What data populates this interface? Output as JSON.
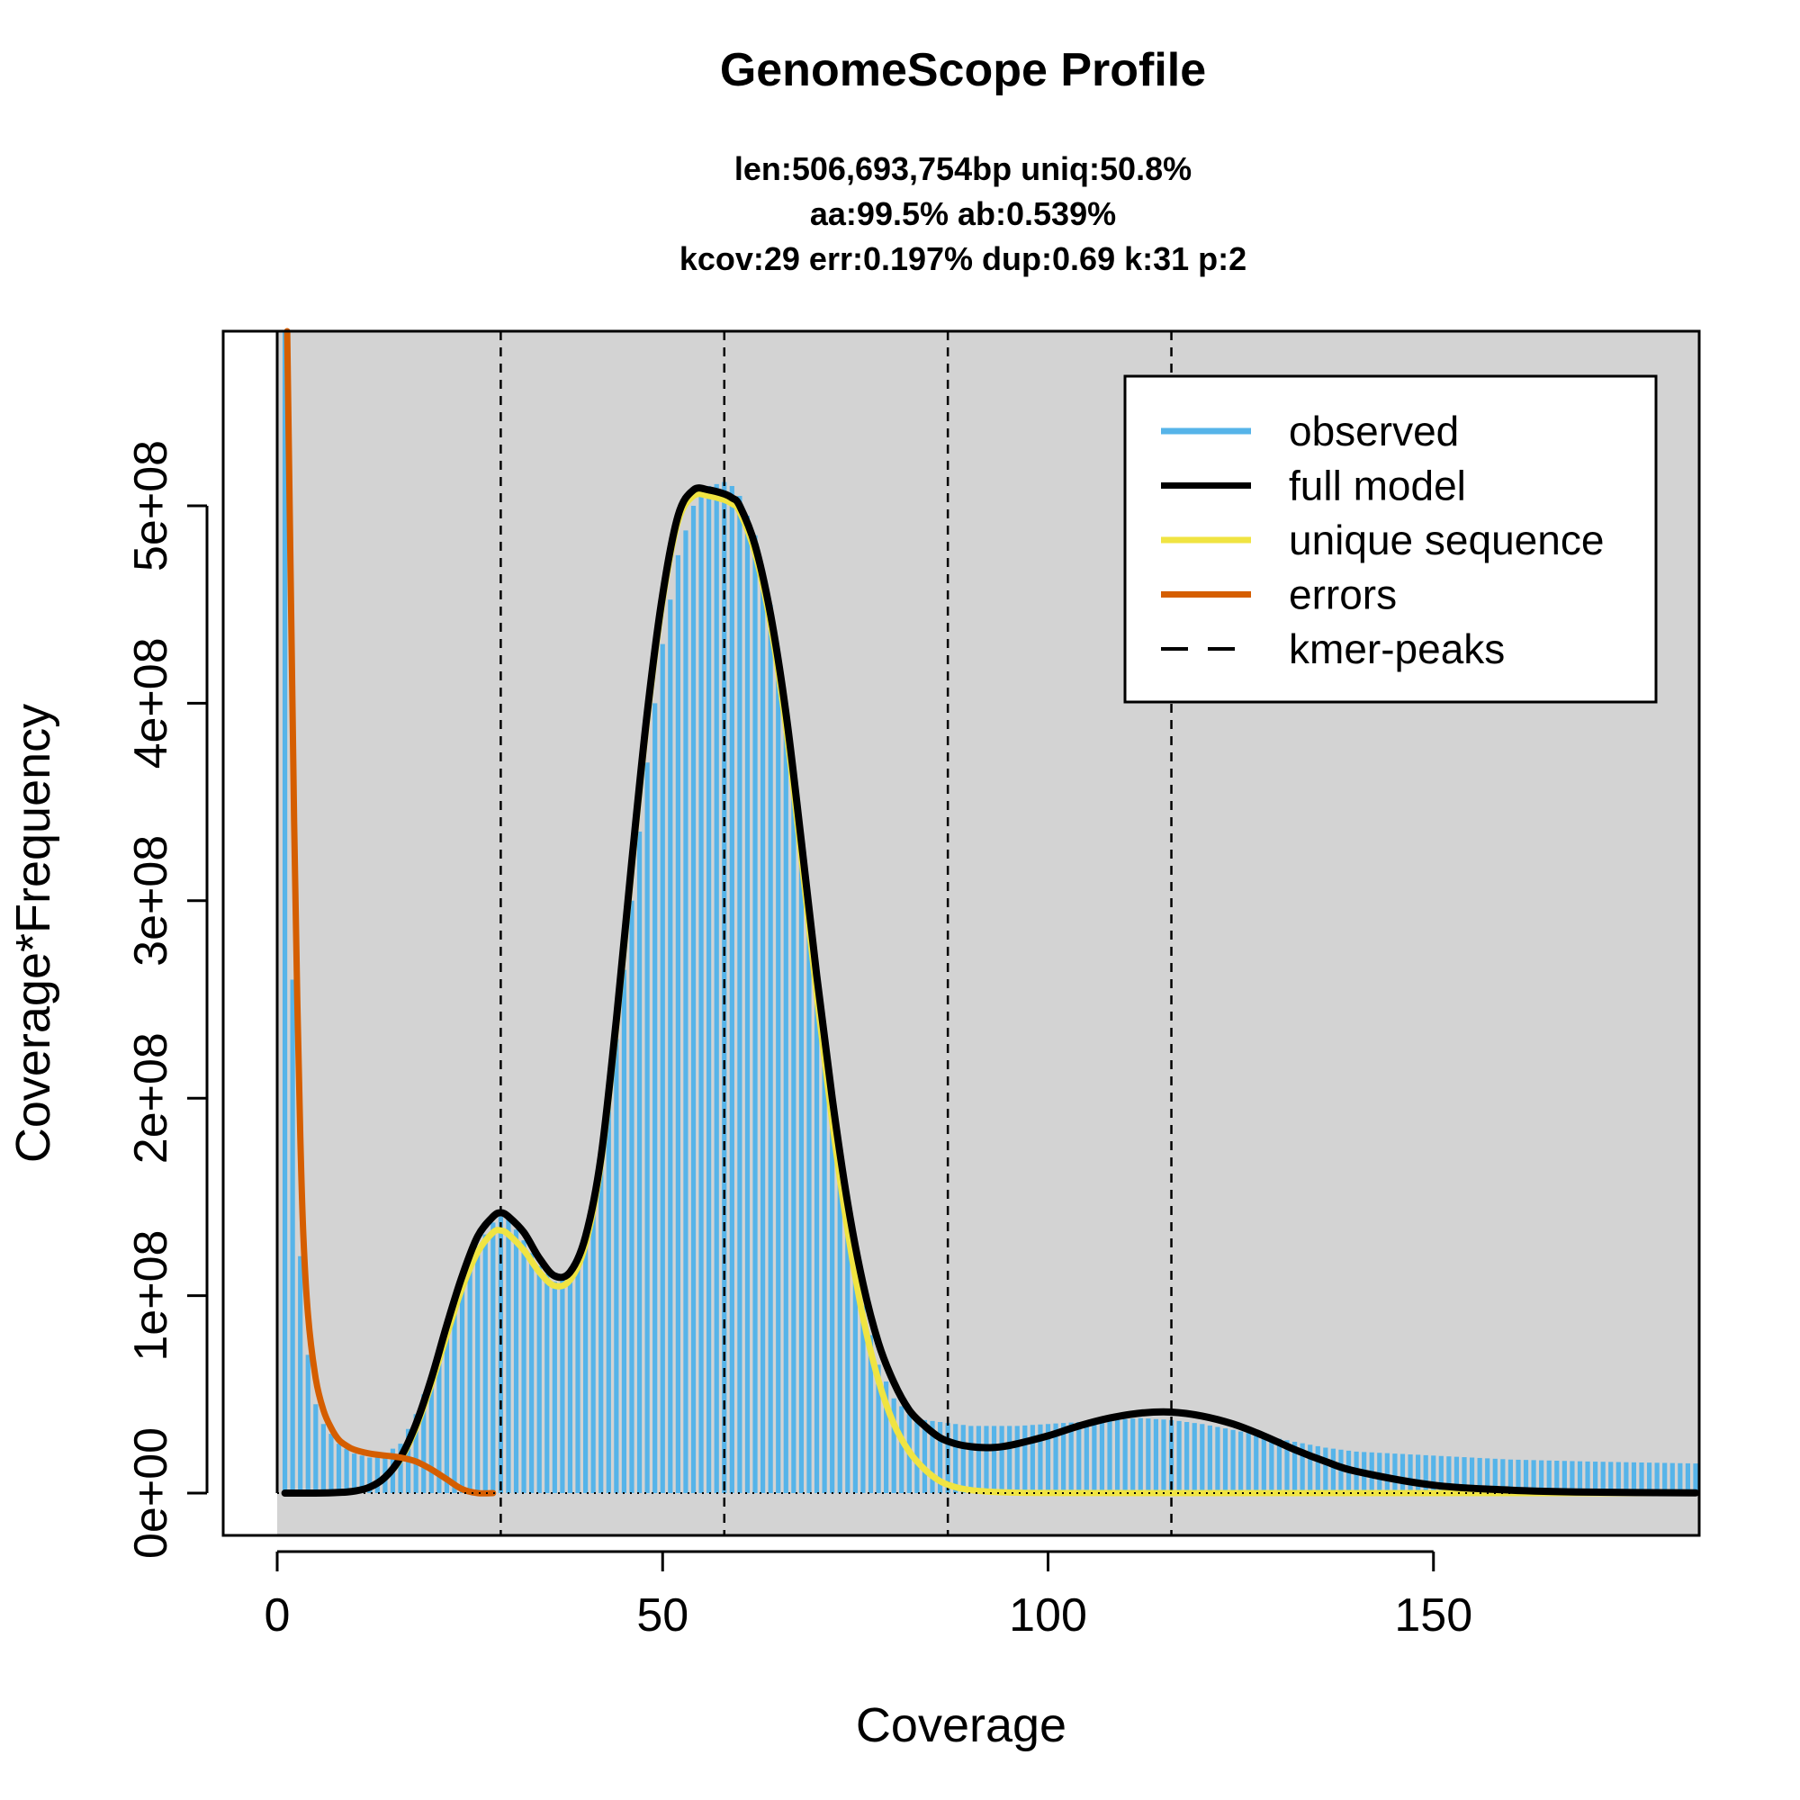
{
  "chart_data": {
    "type": "area",
    "title": "GenomeScope Profile",
    "subtitle_lines": [
      "len:506,693,754bp uniq:50.8%",
      "aa:99.5% ab:0.539%",
      "kcov:29 err:0.197%  dup:0.69  k:31 p:2"
    ],
    "xlabel": "Coverage",
    "ylabel": "Coverage*Frequency",
    "xlim": [
      0,
      184
    ],
    "ylim": [
      0,
      590000000
    ],
    "x_ticks": [
      0,
      50,
      100,
      150
    ],
    "x_tick_labels": [
      "0",
      "50",
      "100",
      "150"
    ],
    "y_ticks": [
      0,
      100000000,
      200000000,
      300000000,
      400000000,
      500000000
    ],
    "y_tick_labels": [
      "0e+00",
      "1e+08",
      "2e+08",
      "3e+08",
      "4e+08",
      "5e+08"
    ],
    "kmer_peaks": [
      29,
      58,
      87,
      116
    ],
    "legend": {
      "position": "top-right",
      "items": [
        {
          "label": "observed",
          "color": "#56B4E9",
          "style": "solid"
        },
        {
          "label": "full model",
          "color": "#000000",
          "style": "solid"
        },
        {
          "label": "unique sequence",
          "color": "#F0E442",
          "style": "solid"
        },
        {
          "label": "errors",
          "color": "#D55E00",
          "style": "solid"
        },
        {
          "label": "kmer-peaks",
          "color": "#000000",
          "style": "dashed"
        }
      ]
    },
    "colors": {
      "panel_background": "#D3D3D3",
      "observed": "#56B4E9",
      "full_model": "#000000",
      "unique_sequence": "#F0E442",
      "errors": "#D55E00"
    },
    "series": [
      {
        "name": "observed",
        "kind": "histogram",
        "x": [
          1,
          2,
          3,
          4,
          5,
          6,
          8,
          10,
          12,
          14,
          16,
          18,
          20,
          22,
          24,
          26,
          28,
          29,
          30,
          32,
          34,
          36,
          38,
          40,
          42,
          44,
          46,
          48,
          50,
          52,
          54,
          56,
          58,
          59,
          60,
          62,
          64,
          66,
          68,
          70,
          72,
          74,
          76,
          78,
          80,
          82,
          84,
          86,
          88,
          90,
          92,
          94,
          96,
          100,
          104,
          108,
          112,
          116,
          120,
          124,
          128,
          132,
          136,
          140,
          150,
          160,
          170,
          184
        ],
        "y": [
          590000000,
          260000000,
          120000000,
          70000000,
          45000000,
          35000000,
          25000000,
          20000000,
          18000000,
          20000000,
          25000000,
          40000000,
          60000000,
          83000000,
          105000000,
          125000000,
          137000000,
          140000000,
          139000000,
          128000000,
          115000000,
          107000000,
          110000000,
          125000000,
          165000000,
          230000000,
          300000000,
          370000000,
          430000000,
          475000000,
          500000000,
          510000000,
          512000000,
          510000000,
          505000000,
          485000000,
          450000000,
          400000000,
          330000000,
          260000000,
          195000000,
          140000000,
          95000000,
          65000000,
          48000000,
          40000000,
          37000000,
          36000000,
          35000000,
          34000000,
          34000000,
          34000000,
          34000000,
          35000000,
          36000000,
          37000000,
          38000000,
          37000000,
          35000000,
          32000000,
          29000000,
          26000000,
          23000000,
          21000000,
          19000000,
          17000000,
          16000000,
          15000000
        ]
      },
      {
        "name": "full model",
        "kind": "line",
        "x": [
          1,
          5,
          8,
          10,
          12,
          14,
          16,
          18,
          20,
          22,
          24,
          26,
          28,
          29,
          30,
          32,
          34,
          36,
          38,
          40,
          42,
          44,
          46,
          48,
          50,
          52,
          54,
          56,
          58,
          59,
          60,
          62,
          64,
          66,
          68,
          70,
          72,
          74,
          76,
          78,
          80,
          82,
          84,
          86,
          88,
          90,
          92,
          94,
          96,
          100,
          104,
          108,
          112,
          116,
          120,
          124,
          128,
          132,
          136,
          140,
          150,
          160,
          170,
          184
        ],
        "y": [
          0,
          0,
          300000,
          1000000,
          3000000,
          8000000,
          18000000,
          35000000,
          58000000,
          85000000,
          110000000,
          130000000,
          140000000,
          142000000,
          140000000,
          132000000,
          119000000,
          110000000,
          112000000,
          130000000,
          170000000,
          240000000,
          320000000,
          395000000,
          455000000,
          495000000,
          508000000,
          508000000,
          506000000,
          504000000,
          500000000,
          480000000,
          445000000,
          395000000,
          330000000,
          262000000,
          200000000,
          147000000,
          106000000,
          76000000,
          56000000,
          42000000,
          34000000,
          28000000,
          25000000,
          23500000,
          23000000,
          23500000,
          25000000,
          29000000,
          34000000,
          38000000,
          40500000,
          41000000,
          39000000,
          35000000,
          29000000,
          22000000,
          16000000,
          11000000,
          4000000,
          1500000,
          500000,
          100000
        ]
      },
      {
        "name": "unique sequence",
        "kind": "line",
        "x": [
          10,
          12,
          14,
          16,
          18,
          20,
          22,
          24,
          26,
          28,
          29,
          30,
          32,
          34,
          36,
          38,
          40,
          42,
          44,
          46,
          48,
          50,
          52,
          54,
          56,
          58,
          59,
          60,
          62,
          64,
          66,
          68,
          70,
          72,
          74,
          76,
          78,
          80,
          82,
          84,
          86,
          88,
          90,
          92,
          94,
          96,
          100,
          120,
          140,
          160,
          184
        ],
        "y": [
          1000000,
          3000000,
          8000000,
          17000000,
          33000000,
          55000000,
          80000000,
          104000000,
          122000000,
          132000000,
          133000000,
          131000000,
          123000000,
          112000000,
          105000000,
          108000000,
          126000000,
          167000000,
          237000000,
          317000000,
          392000000,
          452000000,
          492000000,
          505000000,
          505000000,
          503000000,
          501000000,
          497000000,
          476000000,
          440000000,
          388000000,
          322000000,
          252000000,
          188000000,
          133000000,
          89000000,
          57000000,
          35000000,
          21000000,
          12000000,
          6000000,
          3000000,
          1500000,
          800000,
          400000,
          200000,
          50000,
          0,
          0,
          0,
          0
        ]
      },
      {
        "name": "errors",
        "kind": "line",
        "x": [
          1.3,
          1.8,
          2.2,
          2.6,
          3.0,
          3.4,
          4,
          5,
          6,
          7,
          8,
          9,
          10,
          12,
          14,
          16,
          18,
          20,
          22,
          24,
          26,
          28
        ],
        "y": [
          590000000,
          450000000,
          340000000,
          250000000,
          180000000,
          130000000,
          90000000,
          58000000,
          42000000,
          33000000,
          27000000,
          24000000,
          22000000,
          20000000,
          19000000,
          18000000,
          16000000,
          12000000,
          7000000,
          2000000,
          0,
          0
        ]
      }
    ]
  }
}
